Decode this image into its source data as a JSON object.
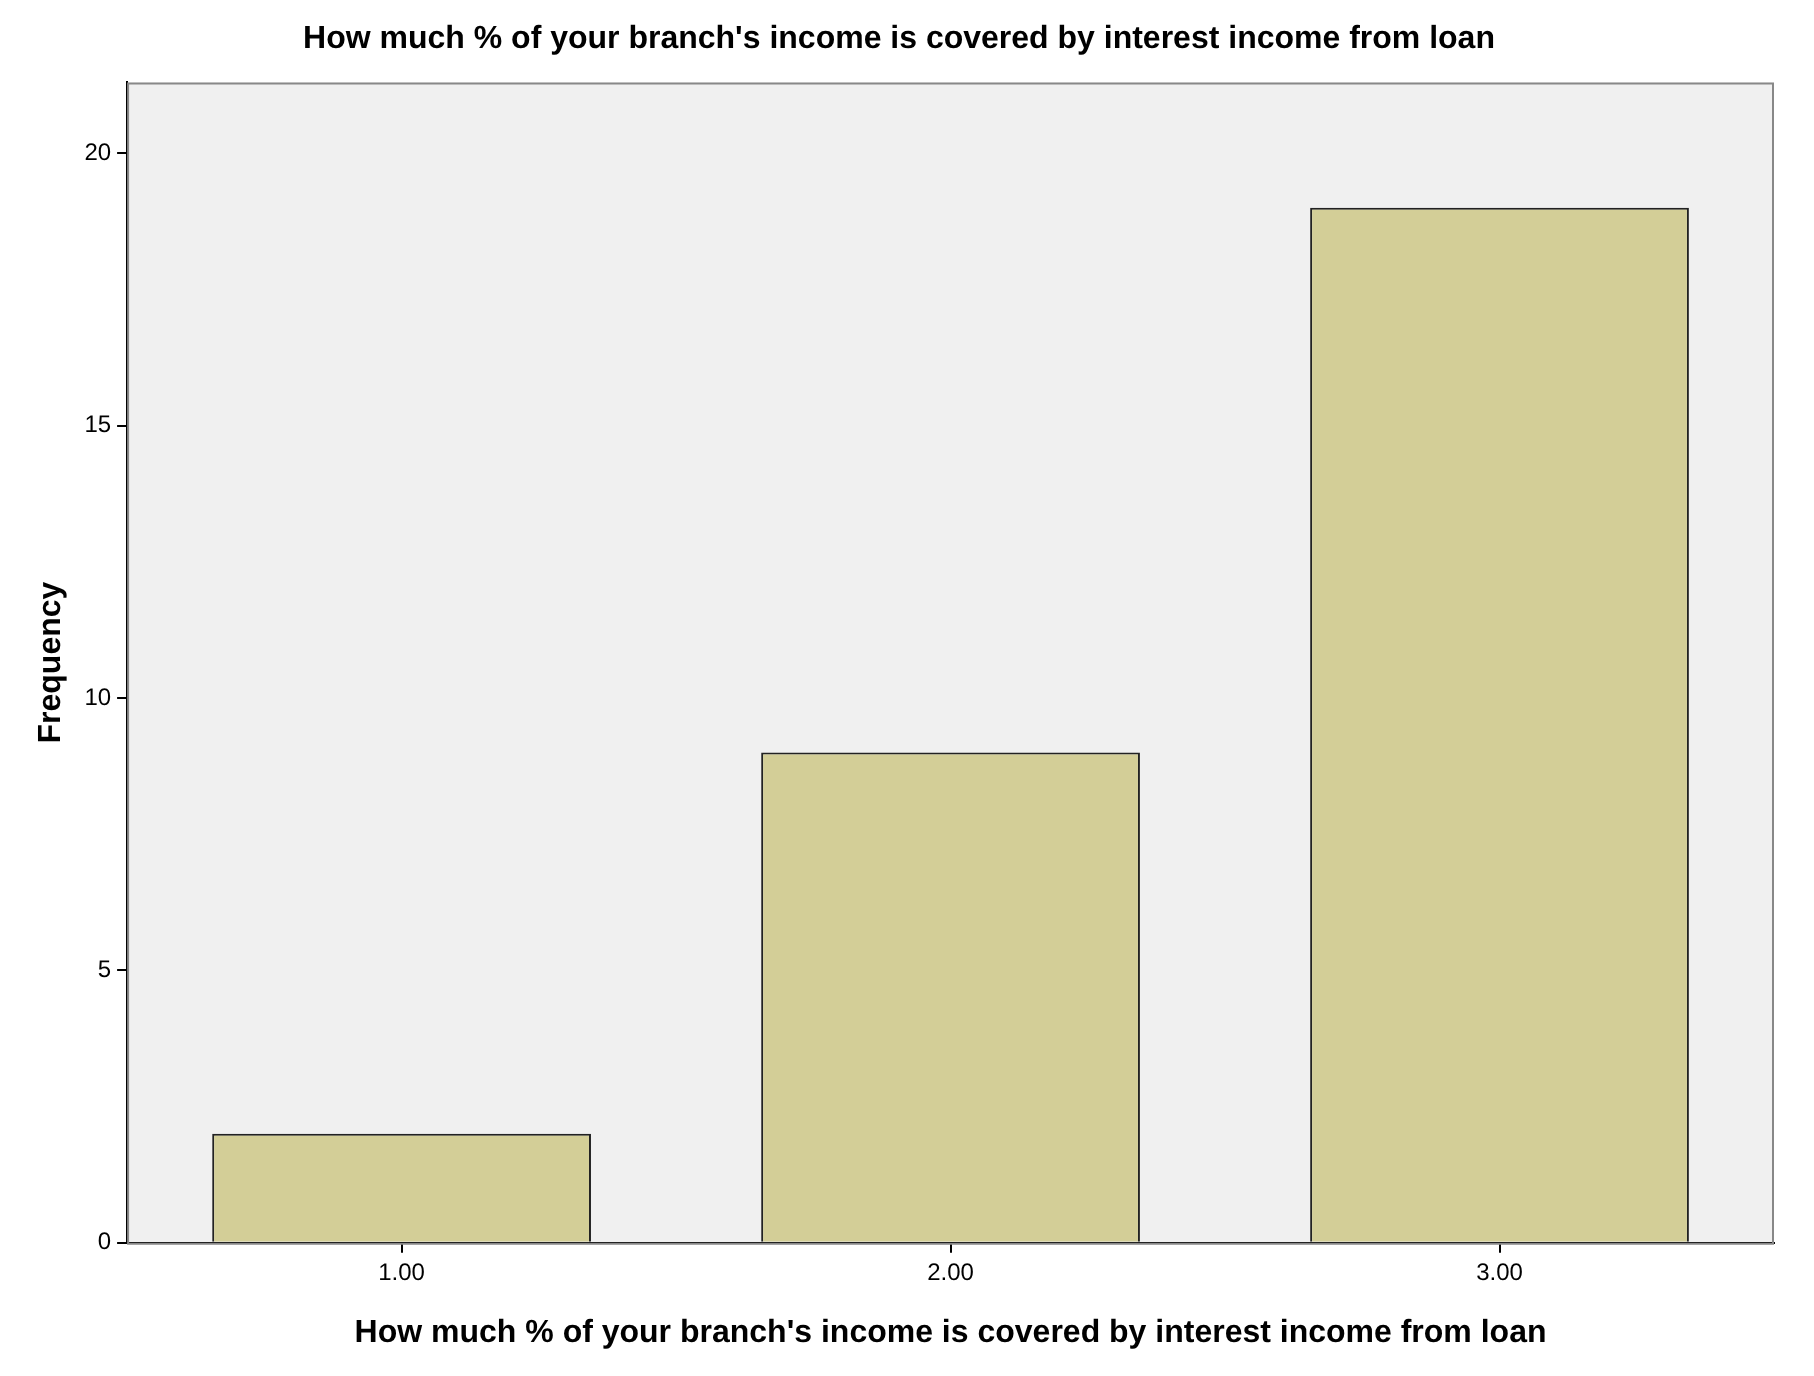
{
  "chart_data": {
    "type": "bar",
    "title": "How much % of your branch's income is covered by interest income from loan",
    "xlabel": "How much % of your branch's income is covered by interest income from loan",
    "ylabel": "Frequency",
    "categories": [
      "1.00",
      "2.00",
      "3.00"
    ],
    "values": [
      2,
      9,
      19
    ],
    "color": "#d3ce97",
    "ylim": [
      0,
      21.3
    ],
    "yticks": [
      0,
      5,
      10,
      15,
      20
    ],
    "grid": false,
    "legend": false
  }
}
